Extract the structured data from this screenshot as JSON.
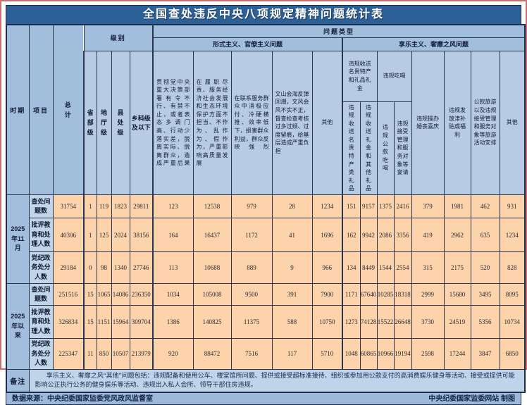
{
  "title": "全国查处违反中央八项规定精神问题统计表",
  "header": {
    "period": "时期",
    "item": "项目",
    "total": "总计",
    "level_group": "级别",
    "problem_type_group": "问题类型",
    "levels": [
      "省部级",
      "地厅级",
      "县处级",
      "乡科级及以下"
    ],
    "formalism_group": "形式主义、官僚主义问题",
    "formalism_cols": [
      "贯彻党中央重大决策部署有令不行、有禁不止，或者表态多调门高、行动少落实差，脱离实际、脱离群众，造成严重后果",
      "在履职尽责、服务经济社会发展和生态环境保护方面不担当、不作为、乱作为、假作为，严重影响高质量发展",
      "在联系服务群众中消极应付、冷硬横推、效率低下，损害群众利益，群众反映强烈",
      "文山会海反弹回潮，文风会风不实不正，督查检查考核过多过频、过度留痕，给基层造成严重负担",
      "其他"
    ],
    "hedonism_group": "享乐主义、奢靡之风问题",
    "hedonism_top": [
      "违规收送名贵特产和礼品礼金",
      "违规吃喝",
      "违规操办婚丧喜庆",
      "违规发放津补贴或福利",
      "公款旅游以及违规接受管理和服务对象等旅游活动安排",
      "其他"
    ],
    "hedonism_sub": [
      "违规收送名贵特产类礼品",
      "违规收送礼金和其他礼品",
      "违规公款吃喝",
      "违规接受管理和服务对象等宴请"
    ]
  },
  "chart_data": {
    "type": "table",
    "columns": [
      "时期",
      "项目",
      "总计",
      "省部级",
      "地厅级",
      "县处级",
      "乡科级及以下",
      "贯彻党中央重大决策部署有令不行、有禁不止，或者表态多调门高、行动少落实差，脱离实际、脱离群众，造成严重后果",
      "在履职尽责、服务经济社会发展和生态环境保护方面不担当、不作为、乱作为、假作为，严重影响高质量发展",
      "在联系服务群众中消极应付、冷硬横推、效率低下，损害群众利益，群众反映强烈",
      "文山会海反弹回潮，文风会风不实不正，督查检查考核过多过频、过度留痕，给基层造成严重负担",
      "其他（形式主义、官僚主义问题）",
      "违规收送名贵特产类礼品",
      "违规收送礼金和其他礼品",
      "违规公款吃喝",
      "违规接受管理和服务对象等宴请",
      "违规操办婚丧喜庆",
      "违规发放津补贴或福利",
      "公款旅游以及违规接受管理和服务对象等旅游活动安排",
      "其他（享乐主义、奢靡之风问题）"
    ],
    "rows": [
      {
        "period": "2025年11月",
        "item": "查处问题数",
        "values": [
          31754,
          1,
          119,
          1823,
          29811,
          123,
          12538,
          979,
          28,
          1234,
          151,
          9157,
          1375,
          2416,
          379,
          1981,
          462,
          931
        ]
      },
      {
        "item": "批评教育和处理人数",
        "values": [
          40306,
          1,
          125,
          2024,
          38156,
          164,
          16437,
          1172,
          41,
          1696,
          162,
          9942,
          2086,
          3356,
          419,
          2962,
          635,
          1234
        ]
      },
      {
        "item": "党纪政务处分人数",
        "values": [
          29184,
          0,
          98,
          1340,
          27746,
          113,
          10688,
          889,
          9,
          966,
          134,
          8449,
          1544,
          2554,
          315,
          2175,
          520,
          828
        ]
      },
      {
        "period": "2025年以来",
        "item": "查处问题数",
        "values": [
          251516,
          15,
          1065,
          14086,
          236350,
          1034,
          105008,
          9500,
          391,
          7900,
          1171,
          67640,
          10285,
          18318,
          2999,
          15680,
          3495,
          8095
        ]
      },
      {
        "item": "批评教育和处理人数",
        "values": [
          326834,
          15,
          1151,
          15964,
          309704,
          1386,
          140825,
          11375,
          588,
          10750,
          1273,
          74128,
          15522,
          26648,
          3730,
          24519,
          5356,
          10734
        ]
      },
      {
        "item": "党纪政务处分人数",
        "values": [
          225347,
          11,
          850,
          10507,
          213979,
          920,
          88472,
          7516,
          117,
          5710,
          1048,
          60865,
          10966,
          19194,
          2598,
          17244,
          3847,
          6850
        ]
      }
    ]
  },
  "note": {
    "label": "备注",
    "text": "享乐主义、奢靡之风“其他”问题包括：违规配备和使用公车、楼堂馆所问题、提供或接受超标准接待、组织或参加用公款支付的高消费娱乐健身等活动、接受或提供可能影响公正执行公务的健身娱乐等活动、违规出入私人会所、领导干部住房违规。",
    "row_heights": ""
  },
  "footer": {
    "source": "数据来源：中央纪委国家监委党风政风监督室",
    "credit": "中央纪委国家监委网站 制图"
  },
  "colors": {
    "title_bar": "#2d6096",
    "group_header": "#a2bedd",
    "leaf_header": "#b7cce4",
    "item_label": "#c0d5e8",
    "data_cell": "#fcd3ab",
    "frame": "#c96f6f",
    "grid": "#2a3550"
  }
}
